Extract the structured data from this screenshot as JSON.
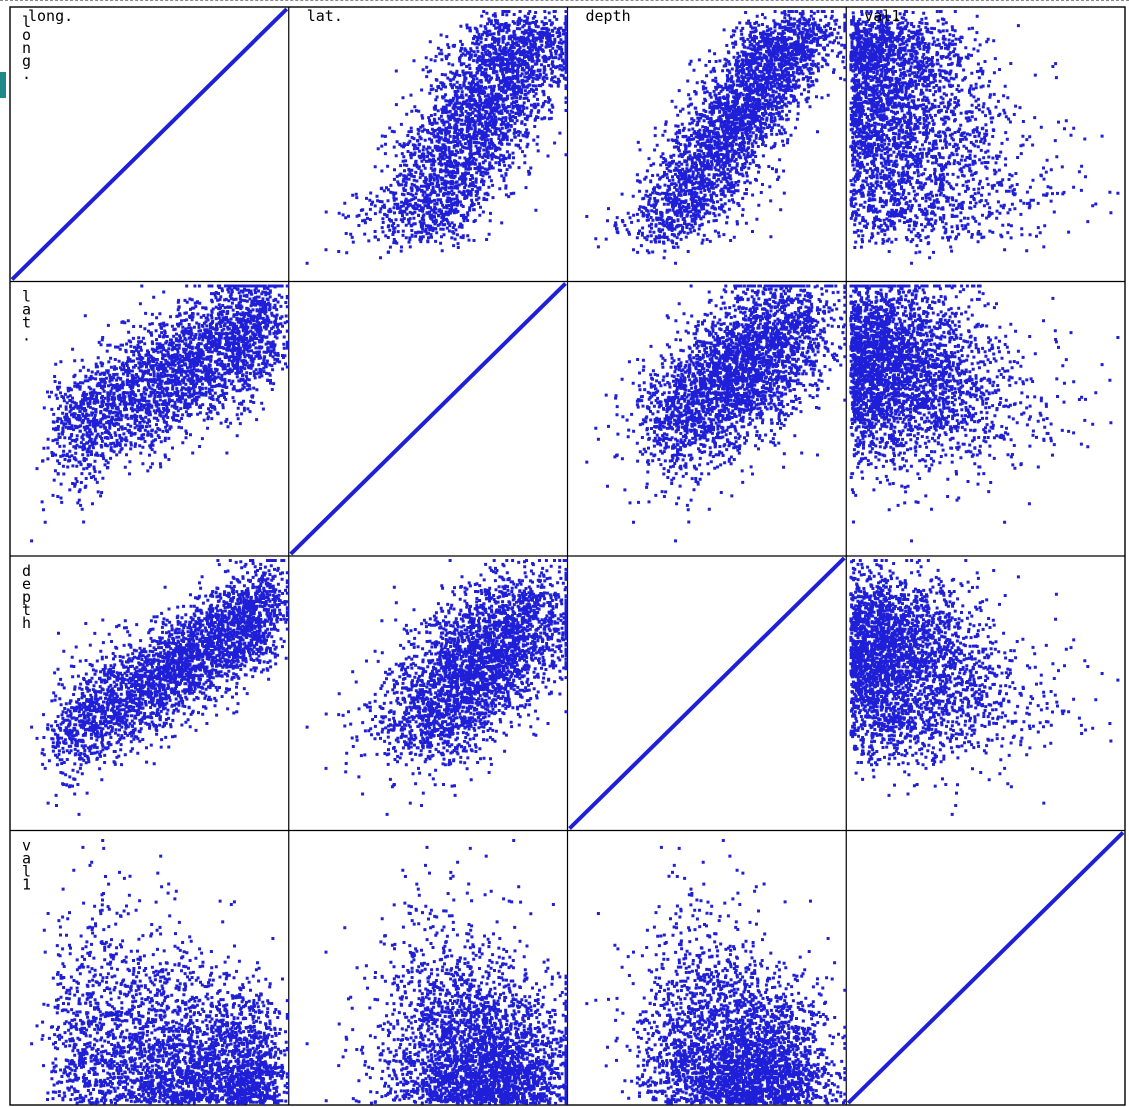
{
  "chart_data": {
    "type": "scatter",
    "layout": "scatterplot-matrix",
    "variables": [
      "long.",
      "lat.",
      "depth",
      "val1"
    ],
    "row_labels": [
      "long.",
      "lat.",
      "depth",
      "val1"
    ],
    "column_labels": [
      "long.",
      "lat.",
      "depth",
      "val1"
    ],
    "grid": false,
    "series_color": "#1f1fd8",
    "border_color": "#000000",
    "approx_point_count_per_panel": 3000,
    "panels": [
      {
        "row": "long.",
        "col": "lat.",
        "pattern": "strong positive trend of short steep streaks, widening upward to the right"
      },
      {
        "row": "long.",
        "col": "depth",
        "pattern": "positive trend, dense fan at upper right"
      },
      {
        "row": "long.",
        "col": "val1",
        "pattern": "dense cloud on left half, sparse toward right"
      },
      {
        "row": "lat.",
        "col": "long.",
        "pattern": "horizontal streaks, concentrated upper area"
      },
      {
        "row": "lat.",
        "col": "depth",
        "pattern": "dense cluster upper-middle-right, scattered streaks"
      },
      {
        "row": "lat.",
        "col": "val1",
        "pattern": "horizontal bands across upper half, left-dense"
      },
      {
        "row": "depth",
        "col": "long.",
        "pattern": "rising streak cloud to upper right"
      },
      {
        "row": "depth",
        "col": "lat.",
        "pattern": "cluster upper right, sparse lower left"
      },
      {
        "row": "depth",
        "col": "val1",
        "pattern": "dense cloud upper-left, horizontal bands"
      },
      {
        "row": "val1",
        "col": "long.",
        "pattern": "mound shape, dense near bottom left"
      },
      {
        "row": "val1",
        "col": "lat.",
        "pattern": "vertical columns of points on right half"
      },
      {
        "row": "val1",
        "col": "depth",
        "pattern": "vertical columns, center-right"
      }
    ]
  }
}
